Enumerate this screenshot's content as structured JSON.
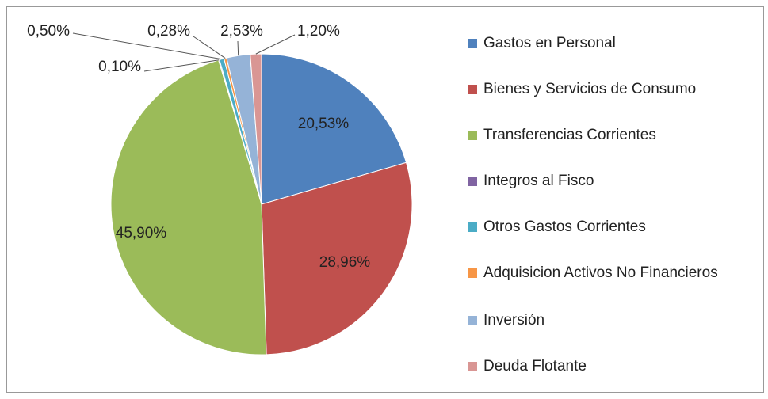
{
  "chart_data": {
    "type": "pie",
    "categories": [
      "Gastos en Personal",
      "Bienes y Servicios de Consumo",
      "Transferencias Corrientes",
      "Integros al Fisco",
      "Otros Gastos Corrientes",
      "Adquisicion Activos No Financieros",
      "Inversión",
      "Deuda Flotante"
    ],
    "values": [
      20.53,
      28.96,
      45.9,
      0.1,
      0.5,
      0.28,
      2.53,
      1.2
    ],
    "value_labels": [
      "20,53%",
      "28,96%",
      "45,90%",
      "0,10%",
      "0,50%",
      "0,28%",
      "2,53%",
      "1,20%"
    ],
    "colors": [
      "#4f81bd",
      "#c0504d",
      "#9bbb59",
      "#8064a2",
      "#4bacc6",
      "#f79646",
      "#95b3d7",
      "#d99694"
    ],
    "legend": "right"
  }
}
